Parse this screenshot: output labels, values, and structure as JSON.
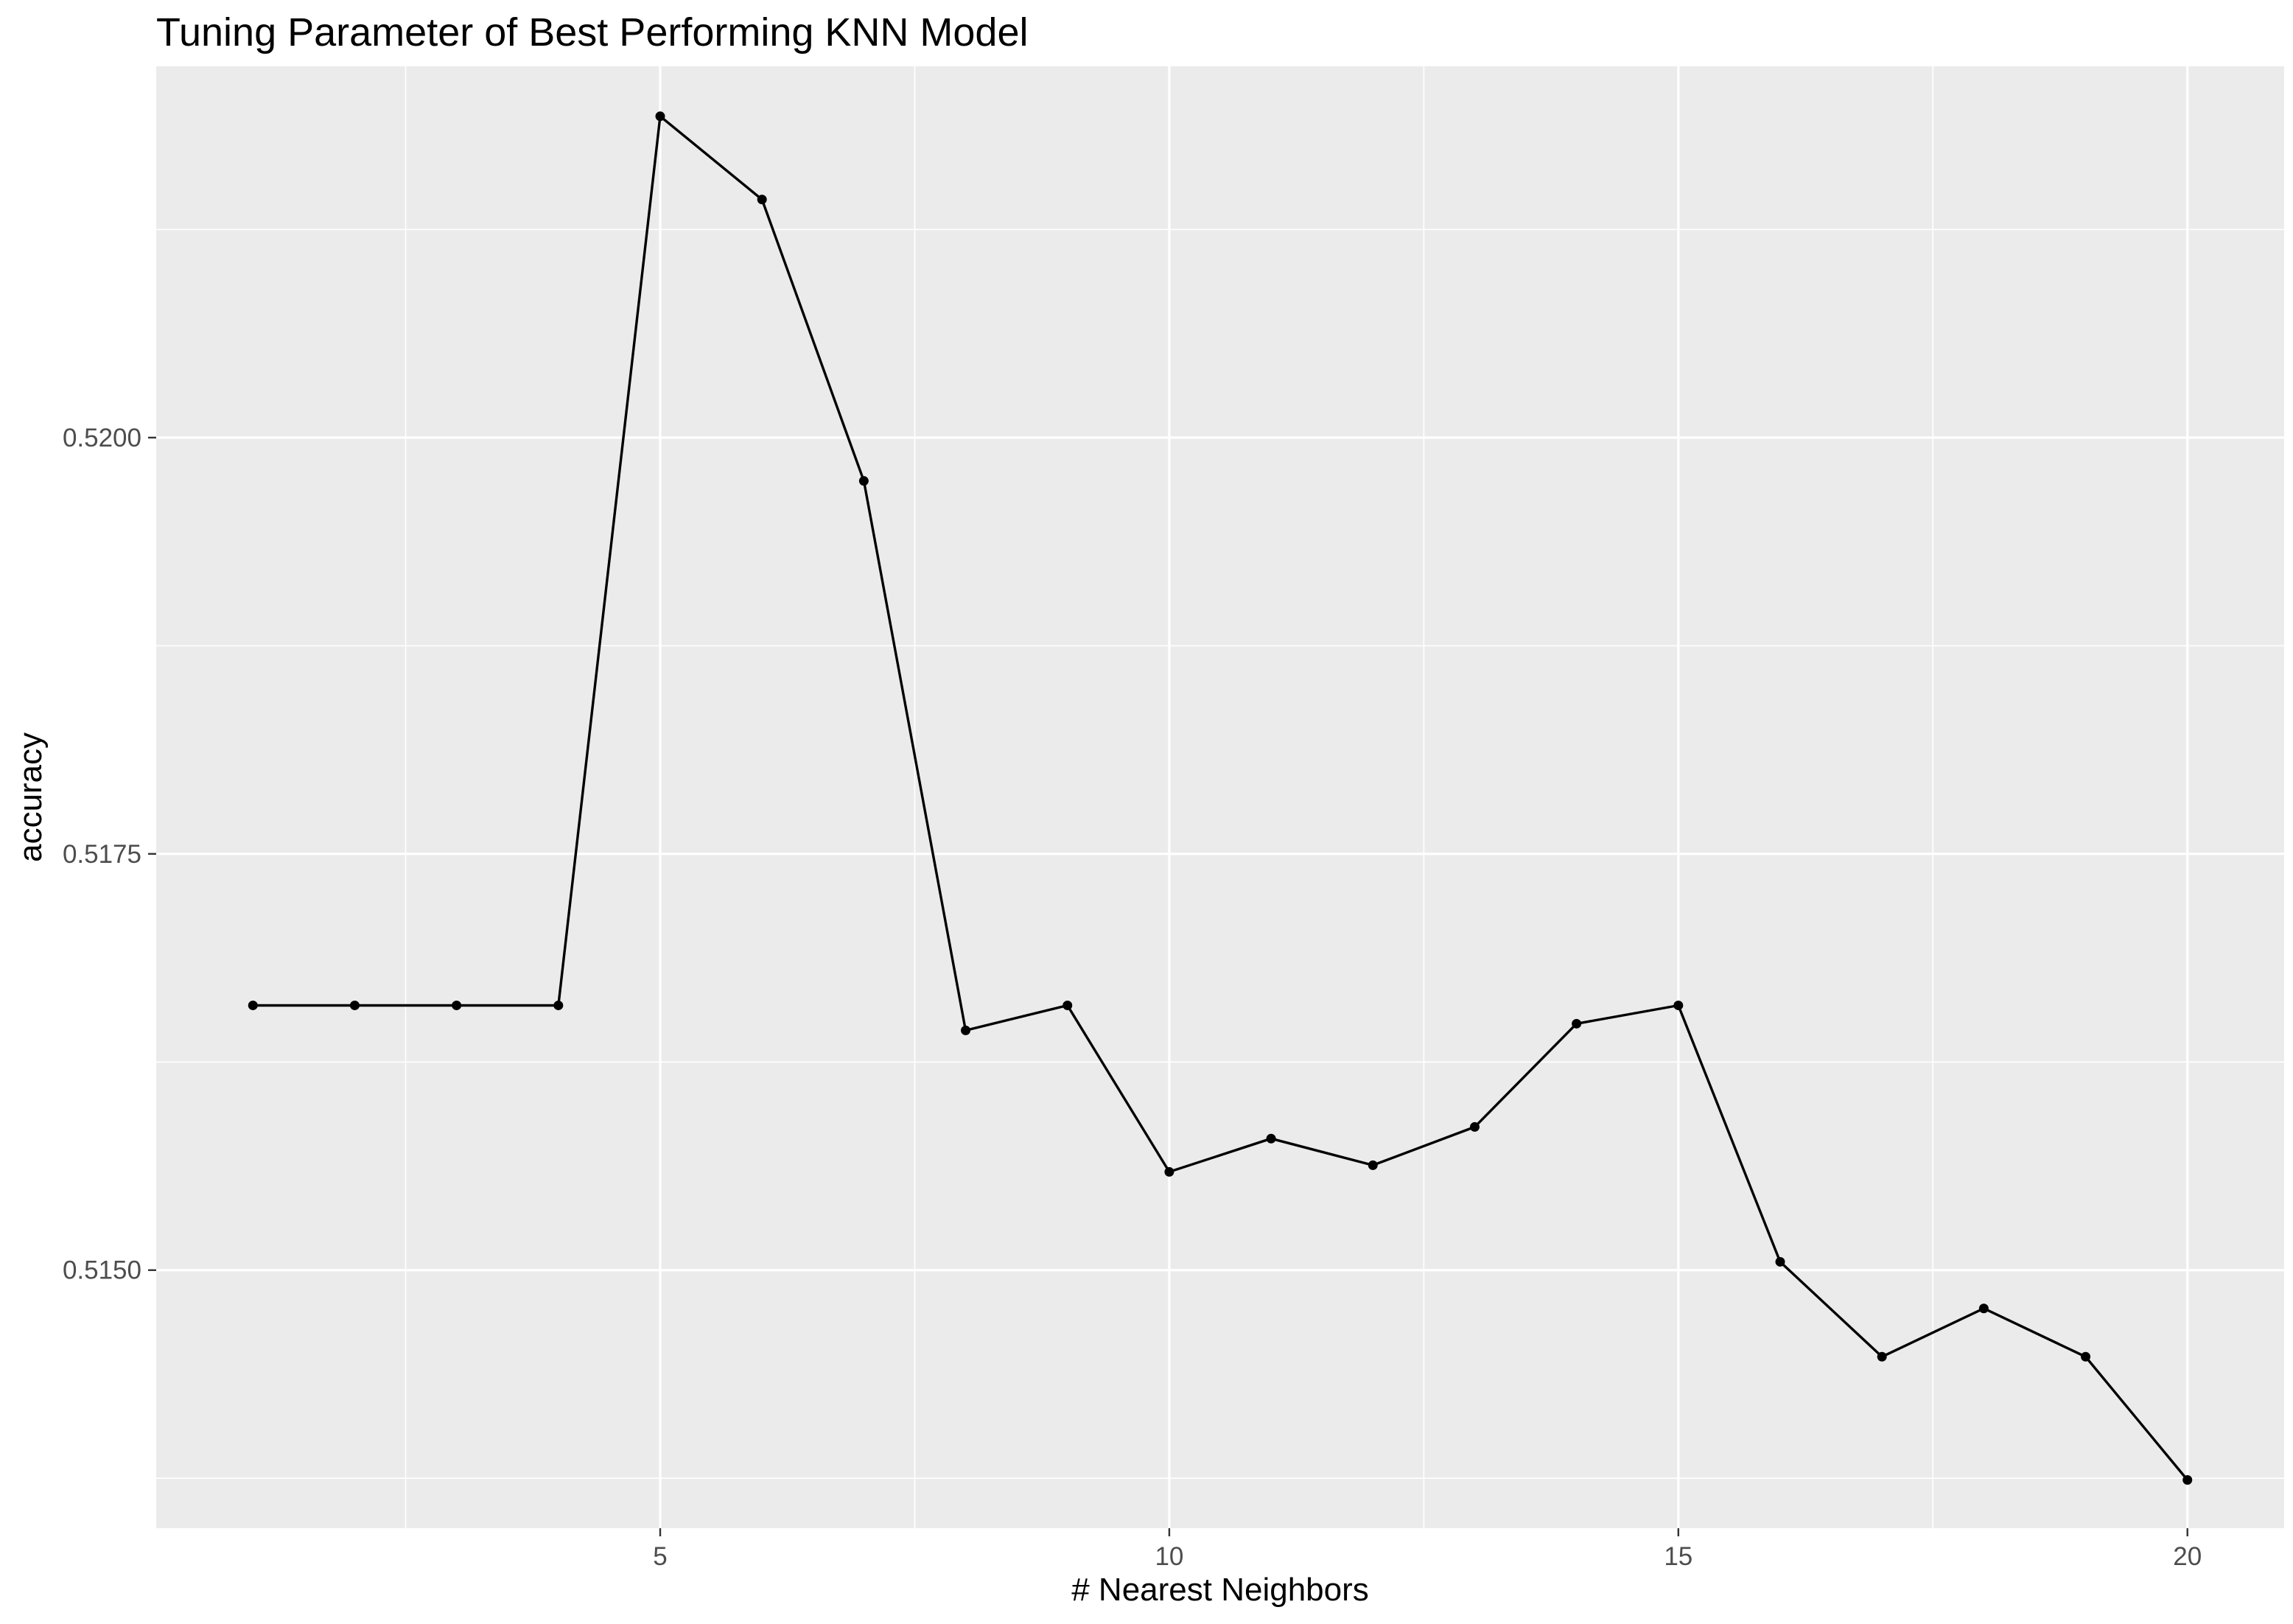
{
  "chart_data": {
    "type": "line",
    "title": "Tuning Parameter of Best Performing KNN Model",
    "xlabel": "# Nearest Neighbors",
    "ylabel": "accuracy",
    "x": [
      1,
      2,
      3,
      4,
      5,
      6,
      7,
      8,
      9,
      10,
      11,
      12,
      13,
      14,
      15,
      16,
      17,
      18,
      19,
      20
    ],
    "y": [
      0.51659,
      0.51659,
      0.51659,
      0.51659,
      0.52193,
      0.52143,
      0.51974,
      0.51644,
      0.51659,
      0.51559,
      0.51579,
      0.51563,
      0.51586,
      0.51648,
      0.51659,
      0.51505,
      0.51448,
      0.51477,
      0.51448,
      0.51374
    ],
    "xlim": [
      0.05,
      20.95
    ],
    "ylim": [
      0.51345,
      0.52223
    ],
    "x_ticks": [
      5,
      10,
      15,
      20
    ],
    "x_tick_labels": [
      "5",
      "10",
      "15",
      "20"
    ],
    "y_ticks": [
      0.515,
      0.5175,
      0.52
    ],
    "y_tick_labels": [
      "0.5150",
      "0.5175",
      "0.5200"
    ],
    "grid": true,
    "panel_background": "#EBEBEB",
    "grid_color": "#FFFFFF",
    "line_color": "#000000",
    "point_color": "#000000"
  }
}
